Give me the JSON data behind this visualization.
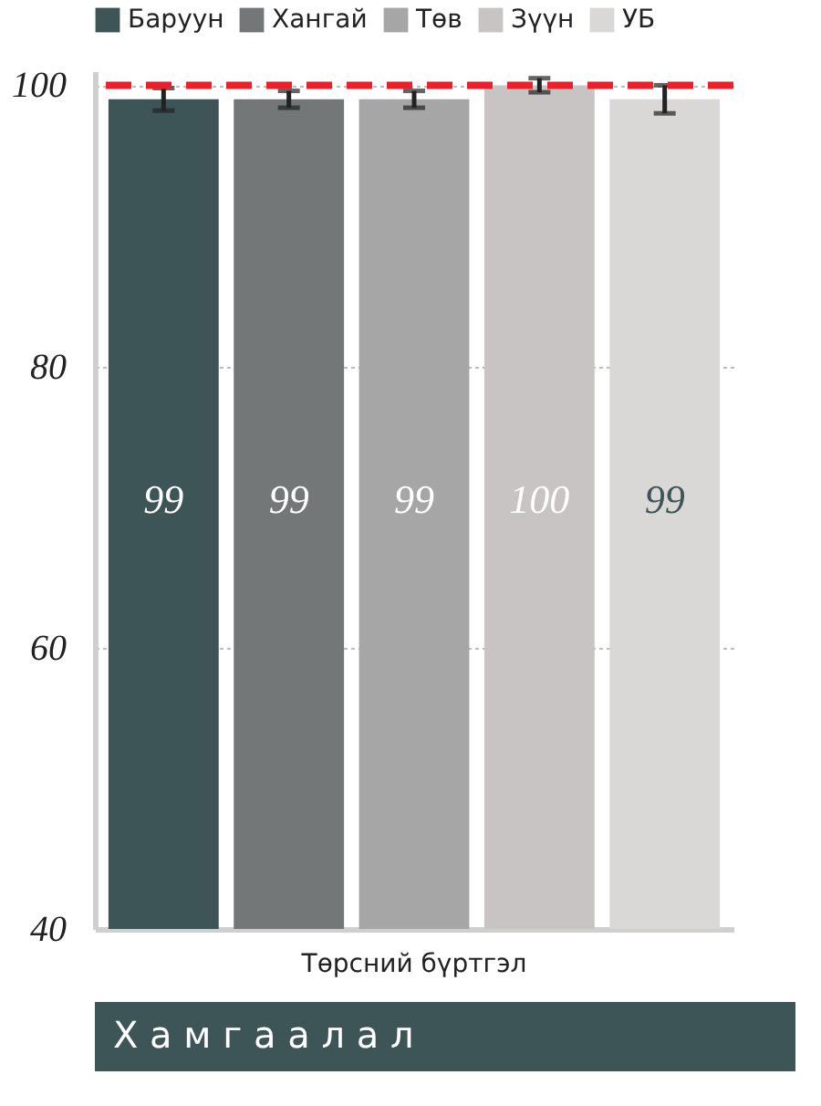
{
  "chart_data": {
    "type": "bar",
    "categories": [
      "Төрсний бүртгэл"
    ],
    "series": [
      {
        "name": "Баруун",
        "color": "#3e5557",
        "values": [
          99
        ],
        "errors": [
          0.8
        ]
      },
      {
        "name": "Хангай",
        "color": "#737778",
        "values": [
          99
        ],
        "errors": [
          0.6
        ]
      },
      {
        "name": "Төв",
        "color": "#a7a6a7",
        "values": [
          99
        ],
        "errors": [
          0.6
        ]
      },
      {
        "name": "Зүүн",
        "color": "#c7c4c3",
        "values": [
          100
        ],
        "errors": [
          0.5
        ]
      },
      {
        "name": "УБ",
        "color": "#dad8d7",
        "values": [
          99
        ],
        "errors": [
          1.0
        ]
      }
    ],
    "ylim": [
      40,
      101
    ],
    "yticks": [
      40,
      60,
      80,
      100
    ],
    "grid": "y",
    "legend": "top",
    "data_labels": true,
    "ref_lines": [
      {
        "axis": "y",
        "value": 100,
        "color": "#e8212a",
        "line_style": "dashed"
      }
    ],
    "annotations": [
      "Х а м г а а л а л"
    ]
  }
}
